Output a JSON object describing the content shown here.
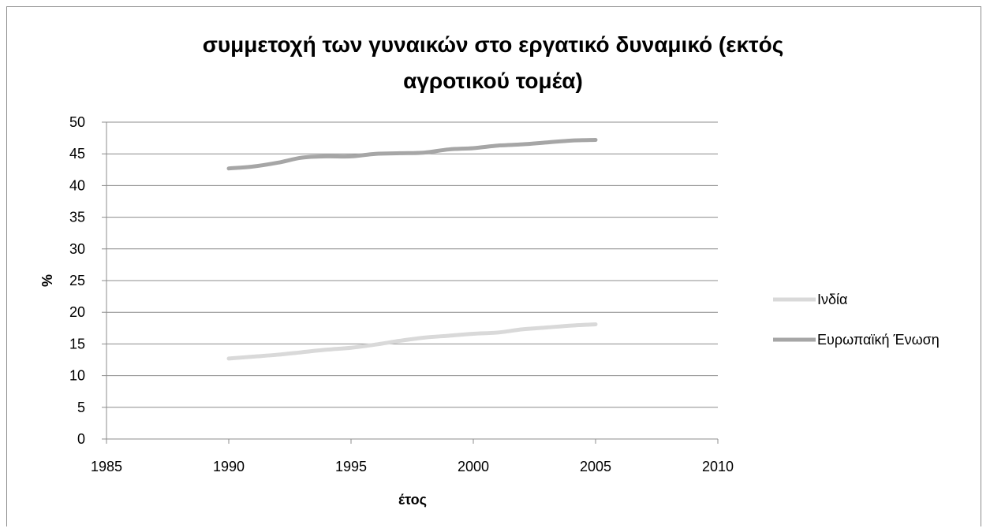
{
  "chart_data": {
    "type": "line",
    "title_lines": [
      "συμμετοχή των γυναικών στο εργατικό δυναμικό (εκτός",
      "αγροτικού τομέα)"
    ],
    "xlabel": "έτος",
    "ylabel": "%",
    "xlim": [
      1985,
      2010
    ],
    "ylim": [
      0,
      50
    ],
    "x_ticks": [
      "1985",
      "1990",
      "1995",
      "2000",
      "2005",
      "2010"
    ],
    "y_ticks": [
      "0",
      "5",
      "10",
      "15",
      "20",
      "25",
      "30",
      "35",
      "40",
      "45",
      "50"
    ],
    "grid": true,
    "legend_position": "right",
    "series": [
      {
        "name": "Ινδία",
        "color": "#d9d9d9",
        "x": [
          1990,
          1991,
          1992,
          1993,
          1994,
          1995,
          1996,
          1997,
          1998,
          1999,
          2000,
          2001,
          2002,
          2003,
          2004,
          2005
        ],
        "y": [
          12.7,
          13.0,
          13.3,
          13.7,
          14.1,
          14.4,
          14.9,
          15.5,
          16.0,
          16.3,
          16.6,
          16.8,
          17.3,
          17.6,
          17.9,
          18.1
        ]
      },
      {
        "name": "Ευρωπαϊκή Ένωση",
        "color": "#a6a6a6",
        "x": [
          1990,
          1991,
          1992,
          1993,
          1994,
          1995,
          1996,
          1997,
          1998,
          1999,
          2000,
          2001,
          2002,
          2003,
          2004,
          2005
        ],
        "y": [
          42.7,
          43.0,
          43.6,
          44.4,
          44.6,
          44.6,
          45.0,
          45.1,
          45.2,
          45.7,
          45.9,
          46.3,
          46.5,
          46.8,
          47.1,
          47.2
        ]
      }
    ]
  }
}
